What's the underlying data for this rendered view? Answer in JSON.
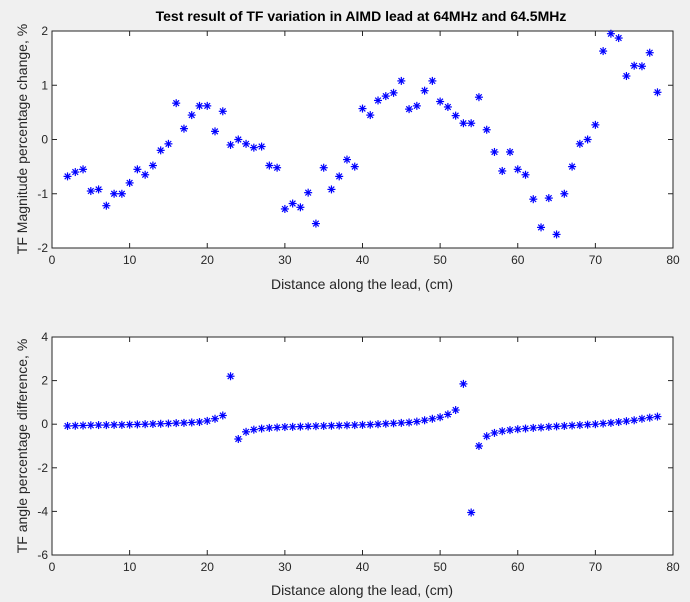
{
  "chart_data": [
    {
      "type": "scatter",
      "title": "Test result of TF variation in AIMD lead at 64MHz and 64.5MHz",
      "xlabel": "Distance along the lead, (cm)",
      "ylabel": "TF Magnitude percentage change, %",
      "xlim": [
        0,
        80
      ],
      "ylim": [
        -2,
        2
      ],
      "xticks": [
        "0",
        "10",
        "20",
        "30",
        "40",
        "50",
        "60",
        "70",
        "80"
      ],
      "yticks": [
        "-2",
        "-1",
        "0",
        "1",
        "2"
      ],
      "marker": "asterisk",
      "color": "#0000ff",
      "grid": false,
      "x": [
        2,
        3,
        4,
        5,
        6,
        7,
        8,
        9,
        10,
        11,
        12,
        13,
        14,
        15,
        16,
        17,
        18,
        19,
        20,
        21,
        22,
        23,
        24,
        25,
        26,
        27,
        28,
        29,
        30,
        31,
        32,
        33,
        34,
        35,
        36,
        37,
        38,
        39,
        40,
        41,
        42,
        43,
        44,
        45,
        46,
        47,
        48,
        49,
        50,
        51,
        52,
        53,
        54,
        55,
        56,
        57,
        58,
        59,
        60,
        61,
        62,
        63,
        64,
        65,
        66,
        67,
        68,
        69,
        70,
        71,
        72,
        73,
        74,
        75,
        76,
        77,
        78
      ],
      "y": [
        -0.68,
        -0.6,
        -0.55,
        -0.95,
        -0.92,
        -1.22,
        -1.0,
        -1.0,
        -0.8,
        -0.55,
        -0.65,
        -0.48,
        -0.2,
        -0.08,
        0.67,
        0.2,
        0.45,
        0.62,
        0.62,
        0.15,
        0.52,
        -0.1,
        0.0,
        -0.08,
        -0.15,
        -0.13,
        -0.48,
        -0.52,
        -1.28,
        -1.18,
        -1.25,
        -0.98,
        -1.55,
        -0.52,
        -0.92,
        -0.68,
        -0.37,
        -0.5,
        0.57,
        0.45,
        0.72,
        0.8,
        0.86,
        1.08,
        0.56,
        0.62,
        0.9,
        1.08,
        0.7,
        0.6,
        0.44,
        0.3,
        0.3,
        0.78,
        0.18,
        -0.23,
        -0.58,
        -0.23,
        -0.55,
        -0.65,
        -1.1,
        -1.62,
        -1.08,
        -1.75,
        -1.0,
        -0.5,
        -0.08,
        0.0,
        0.27,
        1.63,
        1.95,
        1.87,
        1.17,
        1.36,
        1.35,
        1.6,
        0.87
      ]
    },
    {
      "type": "scatter",
      "title": "",
      "xlabel": "Distance along the lead, (cm)",
      "ylabel": "TF angle percentage difference, %",
      "xlim": [
        0,
        80
      ],
      "ylim": [
        -6,
        4
      ],
      "xticks": [
        "0",
        "10",
        "20",
        "30",
        "40",
        "50",
        "60",
        "70",
        "80"
      ],
      "yticks": [
        "-6",
        "-4",
        "-2",
        "0",
        "2",
        "4"
      ],
      "marker": "asterisk",
      "color": "#0000ff",
      "grid": false,
      "x": [
        2,
        3,
        4,
        5,
        6,
        7,
        8,
        9,
        10,
        11,
        12,
        13,
        14,
        15,
        16,
        17,
        18,
        19,
        20,
        21,
        22,
        23,
        24,
        25,
        26,
        27,
        28,
        29,
        30,
        31,
        32,
        33,
        34,
        35,
        36,
        37,
        38,
        39,
        40,
        41,
        42,
        43,
        44,
        45,
        46,
        47,
        48,
        49,
        50,
        51,
        52,
        53,
        54,
        55,
        56,
        57,
        58,
        59,
        60,
        61,
        62,
        63,
        64,
        65,
        66,
        67,
        68,
        69,
        70,
        71,
        72,
        73,
        74,
        75,
        76,
        77,
        78
      ],
      "y": [
        -0.08,
        -0.07,
        -0.06,
        -0.05,
        -0.04,
        -0.04,
        -0.03,
        -0.03,
        -0.02,
        -0.01,
        0.0,
        0.01,
        0.02,
        0.03,
        0.05,
        0.06,
        0.08,
        0.1,
        0.15,
        0.25,
        0.4,
        2.2,
        -0.68,
        -0.35,
        -0.25,
        -0.2,
        -0.17,
        -0.15,
        -0.13,
        -0.12,
        -0.11,
        -0.1,
        -0.09,
        -0.08,
        -0.07,
        -0.06,
        -0.05,
        -0.04,
        -0.03,
        -0.02,
        0.0,
        0.02,
        0.04,
        0.06,
        0.08,
        0.12,
        0.18,
        0.25,
        0.32,
        0.45,
        0.65,
        1.85,
        -4.05,
        -1.0,
        -0.55,
        -0.4,
        -0.32,
        -0.27,
        -0.23,
        -0.2,
        -0.17,
        -0.15,
        -0.12,
        -0.1,
        -0.08,
        -0.06,
        -0.04,
        -0.02,
        0.0,
        0.03,
        0.06,
        0.1,
        0.14,
        0.18,
        0.25,
        0.3,
        0.35
      ]
    }
  ]
}
